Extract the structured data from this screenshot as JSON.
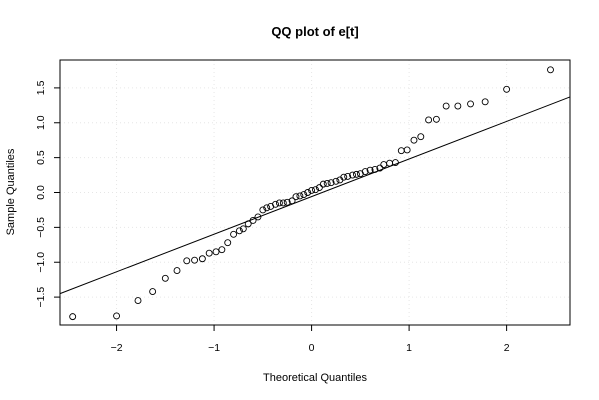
{
  "chart_data": {
    "type": "scatter",
    "title": "QQ plot of e[t]",
    "xlabel": "Theoretical Quantiles",
    "ylabel": "Sample Quantiles",
    "xlim": [
      -2.58,
      2.65
    ],
    "ylim": [
      -1.9,
      1.9
    ],
    "x_ticks": [
      -2,
      -1,
      0,
      1,
      2
    ],
    "y_ticks": [
      -1.5,
      -1.0,
      -0.5,
      0.0,
      0.5,
      1.0,
      1.5
    ],
    "x_tick_labels": [
      "−2",
      "−1",
      "0",
      "1",
      "2"
    ],
    "y_tick_labels": [
      "−1.5",
      "−1.0",
      "−0.5",
      "0.0",
      "0.5",
      "1.0",
      "1.5"
    ],
    "grid": true,
    "qq_line": {
      "x": [
        -2.58,
        2.65
      ],
      "y": [
        -1.45,
        1.37
      ]
    },
    "points": {
      "x": [
        -2.45,
        -2.0,
        -1.78,
        -1.63,
        -1.5,
        -1.38,
        -1.28,
        -1.2,
        -1.12,
        -1.05,
        -0.98,
        -0.92,
        -0.86,
        -0.8,
        -0.74,
        -0.7,
        -0.65,
        -0.6,
        -0.55,
        -0.5,
        -0.46,
        -0.42,
        -0.37,
        -0.33,
        -0.29,
        -0.25,
        -0.2,
        -0.16,
        -0.12,
        -0.08,
        -0.04,
        0.0,
        0.04,
        0.08,
        0.12,
        0.16,
        0.2,
        0.25,
        0.29,
        0.33,
        0.37,
        0.42,
        0.46,
        0.5,
        0.55,
        0.6,
        0.65,
        0.7,
        0.74,
        0.8,
        0.86,
        0.92,
        0.98,
        1.05,
        1.12,
        1.2,
        1.28,
        1.38,
        1.5,
        1.63,
        1.78,
        2.0,
        2.45
      ],
      "y": [
        -1.78,
        -1.77,
        -1.55,
        -1.42,
        -1.23,
        -1.12,
        -0.98,
        -0.97,
        -0.95,
        -0.87,
        -0.85,
        -0.82,
        -0.72,
        -0.6,
        -0.55,
        -0.52,
        -0.45,
        -0.4,
        -0.35,
        -0.25,
        -0.22,
        -0.2,
        -0.17,
        -0.15,
        -0.15,
        -0.14,
        -0.12,
        -0.06,
        -0.05,
        -0.03,
        0.0,
        0.03,
        0.04,
        0.07,
        0.12,
        0.13,
        0.14,
        0.16,
        0.18,
        0.22,
        0.23,
        0.25,
        0.26,
        0.27,
        0.3,
        0.32,
        0.33,
        0.35,
        0.4,
        0.42,
        0.43,
        0.6,
        0.61,
        0.75,
        0.8,
        1.04,
        1.05,
        1.24,
        1.24,
        1.27,
        1.3,
        1.48,
        1.76
      ]
    }
  }
}
